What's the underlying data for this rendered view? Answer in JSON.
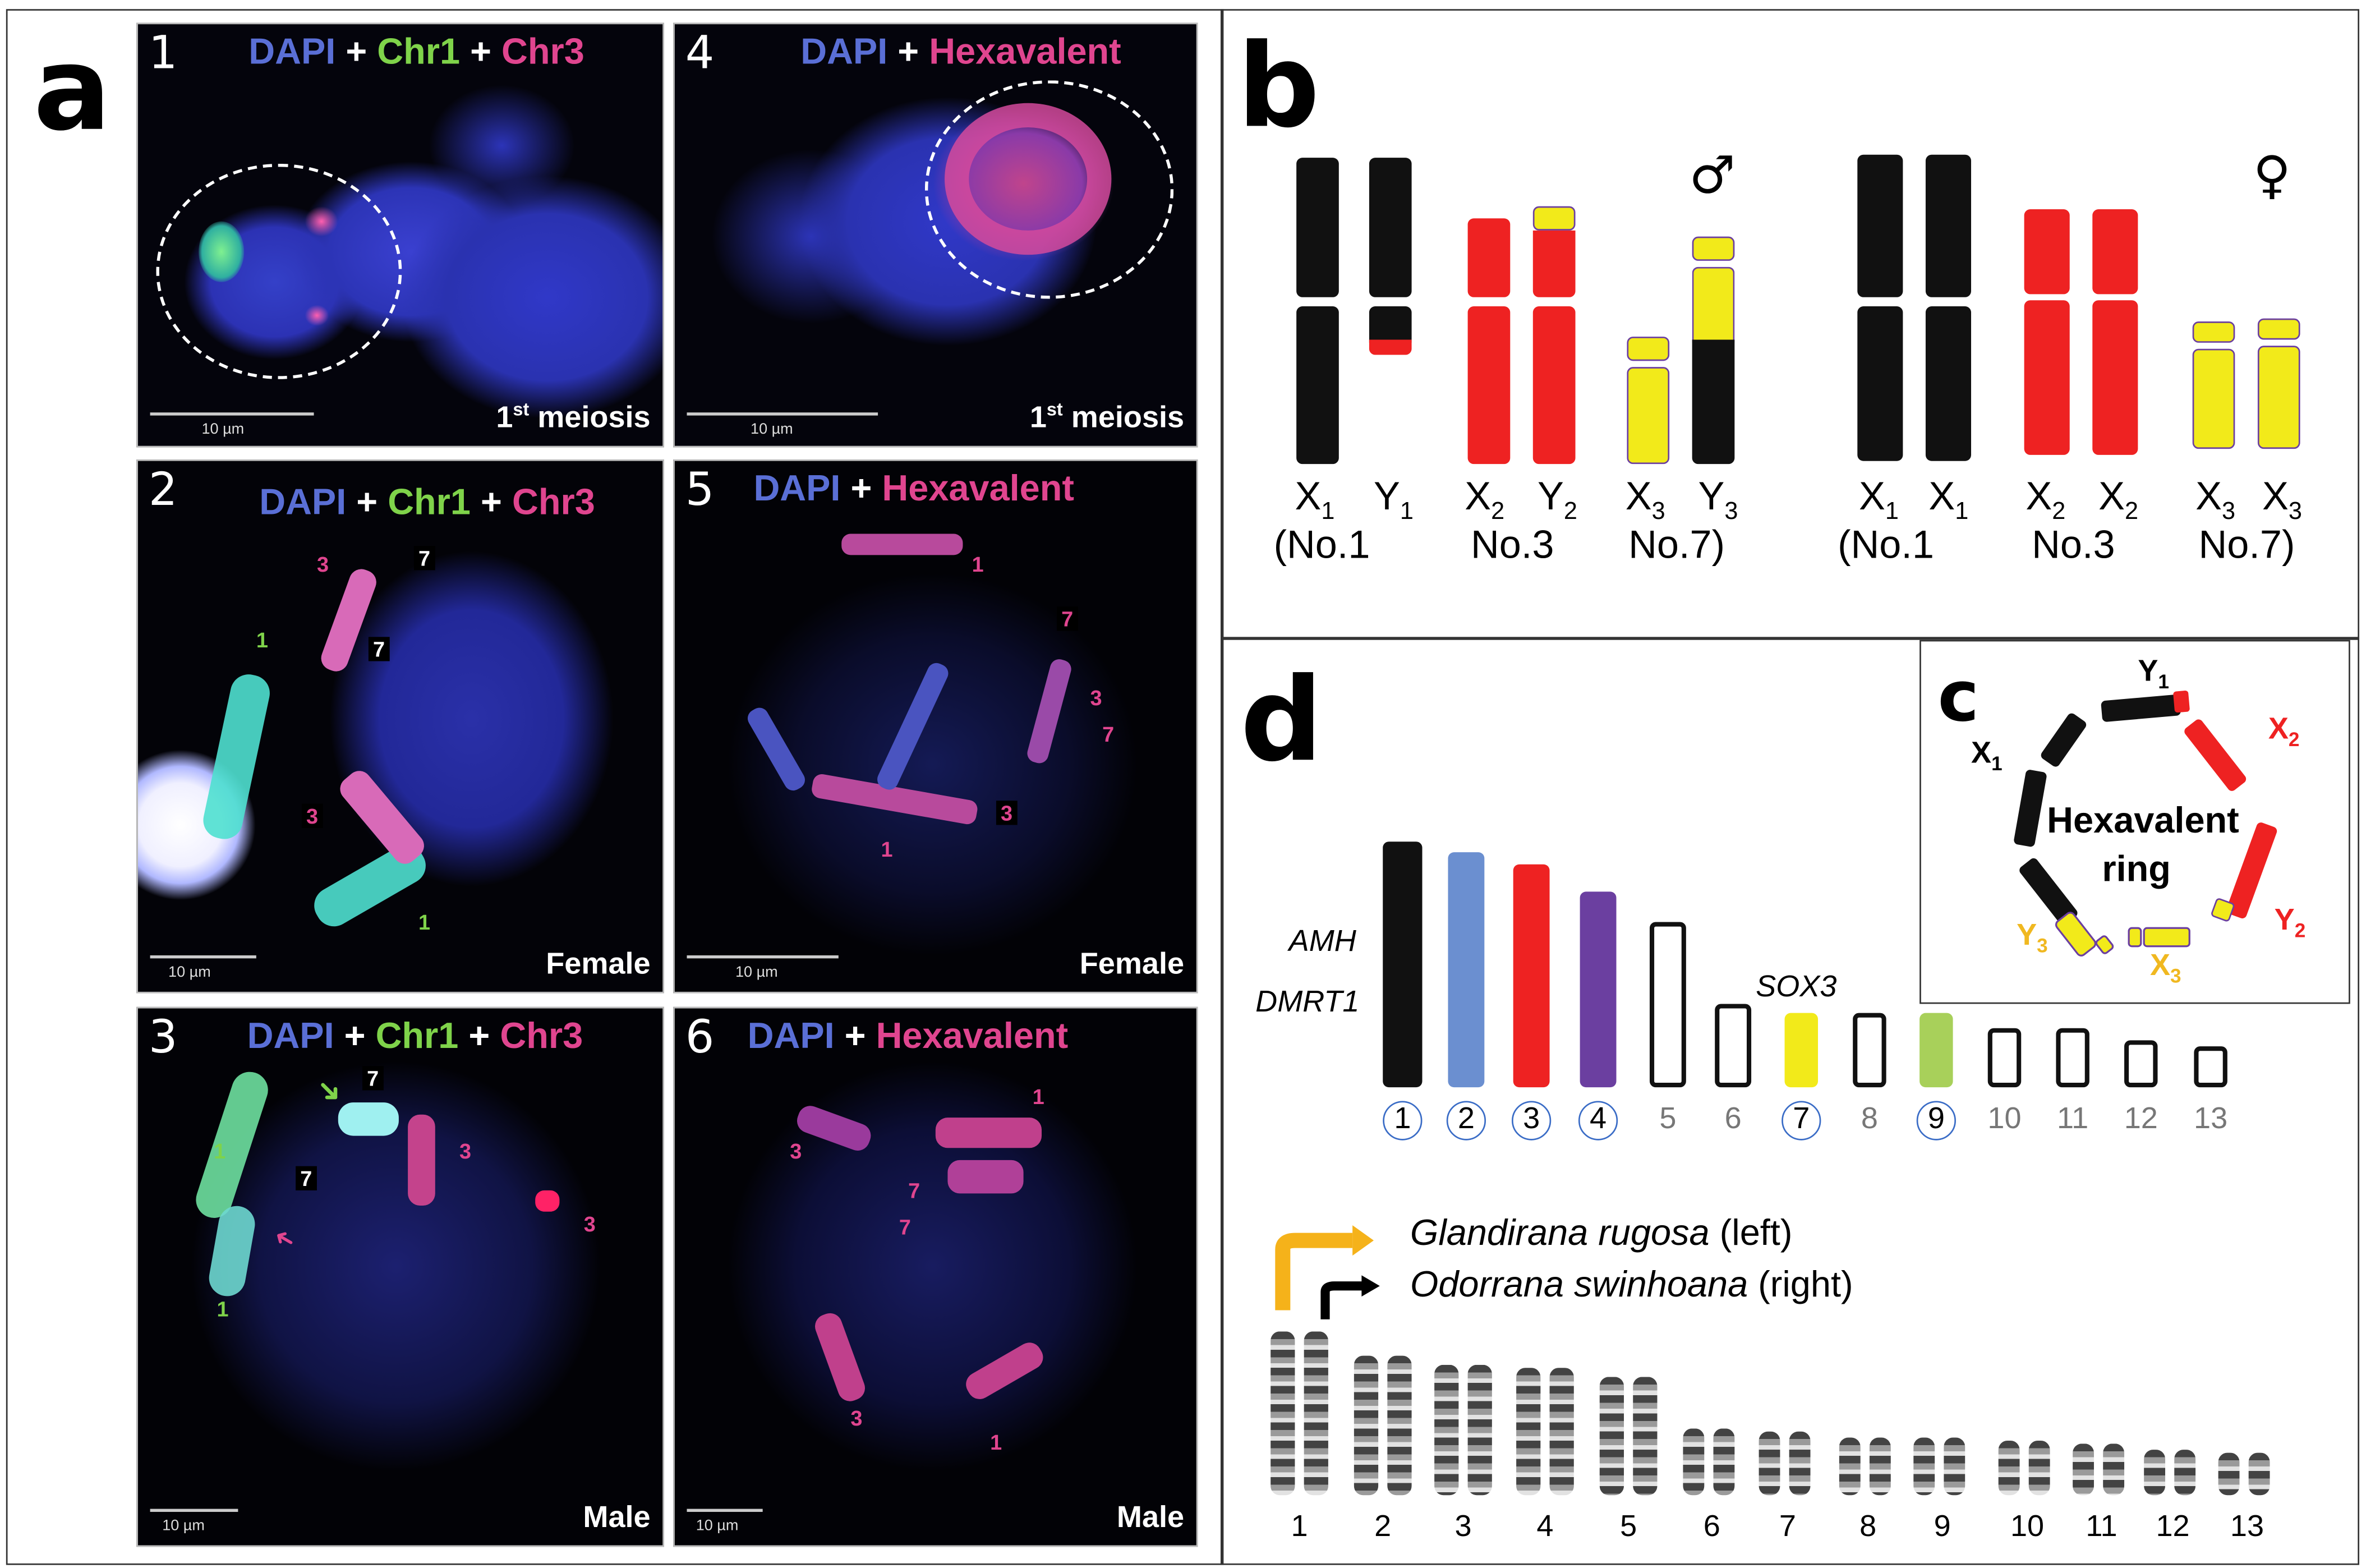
{
  "panel_letters": {
    "a": "a",
    "b": "b",
    "c": "c",
    "d": "d"
  },
  "micrographs": [
    {
      "num": "1",
      "dapi": "DAPI",
      "plus": "+",
      "probe1": "Chr1",
      "probe2": "Chr3",
      "scale": "10 µm",
      "corner_pre": "1",
      "corner_sup": "st",
      "corner_post": " meiosis"
    },
    {
      "num": "4",
      "dapi": "DAPI",
      "plus": "+",
      "probe1": "Hexavalent",
      "scale": "10 µm",
      "corner_pre": "1",
      "corner_sup": "st",
      "corner_post": " meiosis"
    },
    {
      "num": "2",
      "dapi": "DAPI",
      "plus": "+",
      "probe1": "Chr1",
      "probe2": "Chr3",
      "scale": "10 µm",
      "corner": "Female",
      "labels": [
        "3",
        "7",
        "1",
        "7",
        "3",
        "1"
      ]
    },
    {
      "num": "5",
      "dapi": "DAPI",
      "plus": "+",
      "probe1": "Hexavalent",
      "scale": "10 µm",
      "corner": "Female",
      "labels": [
        "1",
        "7",
        "3",
        "7",
        "3",
        "1"
      ]
    },
    {
      "num": "3",
      "dapi": "DAPI",
      "plus": "+",
      "probe1": "Chr1",
      "probe2": "Chr3",
      "scale": "10 µm",
      "corner": "Male",
      "labels": [
        "7",
        "1",
        "7",
        "3",
        "3",
        "1"
      ]
    },
    {
      "num": "6",
      "dapi": "DAPI",
      "plus": "+",
      "probe1": "Hexavalent",
      "scale": "10 µm",
      "corner": "Male",
      "labels": [
        "1",
        "3",
        "7",
        "7",
        "3",
        "1"
      ]
    }
  ],
  "karyotype_b": {
    "male_symbol": "♂",
    "female_symbol": "♀",
    "male": {
      "row1": [
        "X1",
        "Y1",
        "X2",
        "Y2",
        "X3",
        "Y3"
      ],
      "row2": [
        "(No.1",
        "No.3",
        "No.7)"
      ]
    },
    "female": {
      "row1": [
        "X1",
        "X1",
        "X2",
        "X2",
        "X3",
        "X3"
      ],
      "row2": [
        "(No.1",
        "No.3",
        "No.7)"
      ]
    }
  },
  "ring_c": {
    "title_line1": "Hexavalent",
    "title_line2": "ring",
    "labels": {
      "Y1": "Y1",
      "X1": "X1",
      "X2": "X2",
      "Y2": "Y2",
      "Y3": "Y3",
      "X3": "X3"
    },
    "colors": {
      "black": "#111111",
      "red": "#ee2222",
      "yellow": "#f2ea1a"
    }
  },
  "ideogram_d": {
    "genes": [
      "AMH",
      "DMRT1",
      "SOX3"
    ],
    "numbers": [
      "1",
      "2",
      "3",
      "4",
      "5",
      "6",
      "7",
      "8",
      "9",
      "10",
      "11",
      "12",
      "13"
    ],
    "circled": [
      "1",
      "2",
      "3",
      "4",
      "7",
      "9"
    ],
    "colors": [
      "#111111",
      "#6b8fd0",
      "#ee2222",
      "#6b3fa0",
      "#ffffff",
      "#ffffff",
      "#f2ea1a",
      "#ffffff",
      "#a8d05a",
      "#ffffff",
      "#ffffff",
      "#ffffff",
      "#ffffff"
    ],
    "species_left": "Glandirana rugosa",
    "species_left_suffix": " (left)",
    "species_right": "Odorrana swinhoana",
    "species_right_suffix": " (right)",
    "karyo_numbers": [
      "1",
      "2",
      "3",
      "4",
      "5",
      "6",
      "7",
      "8",
      "9",
      "10",
      "11",
      "12",
      "13"
    ]
  }
}
